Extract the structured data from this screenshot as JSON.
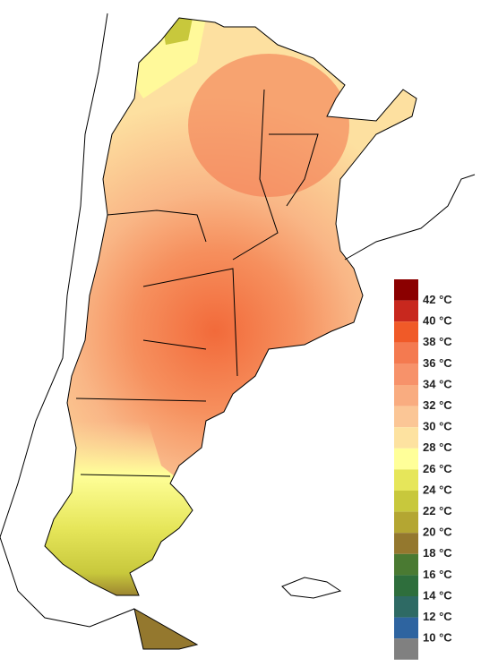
{
  "legend": {
    "labels": [
      "42 °C",
      "40 °C",
      "38 °C",
      "36 °C",
      "34 °C",
      "32 °C",
      "30 °C",
      "28 °C",
      "26 °C",
      "24 °C",
      "22 °C",
      "20 °C",
      "18 °C",
      "16 °C",
      "14 °C",
      "12 °C",
      "10 °C"
    ],
    "colors": [
      "#8b0000",
      "#c8281e",
      "#f05a28",
      "#f47a50",
      "#f7926a",
      "#f9ac80",
      "#fbc696",
      "#fde2a0",
      "#ffff99",
      "#e6e65a",
      "#c8c83c",
      "#b4a632",
      "#94782e",
      "#4a7a32",
      "#2e6e3c",
      "#2e6a64",
      "#2e64a0",
      "#808080"
    ]
  }
}
